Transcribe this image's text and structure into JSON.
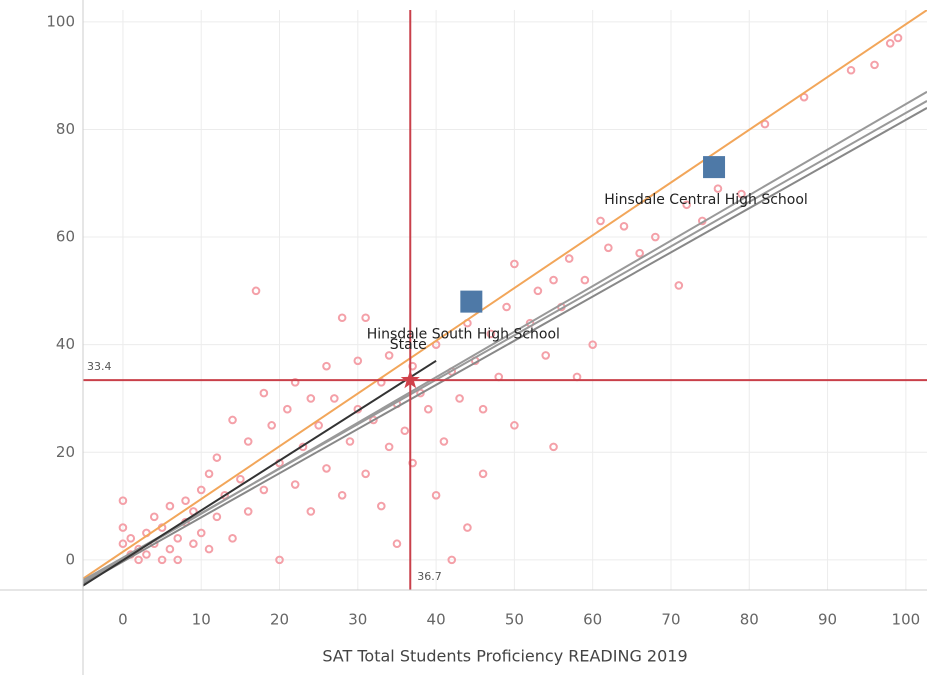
{
  "chart_data": {
    "type": "scatter",
    "x_label": "SAT Total Students Proficiency READING 2019",
    "xlim": [
      -5.1,
      102.7
    ],
    "ylim": [
      -5.6,
      102.2
    ],
    "xticks": [
      0,
      10,
      20,
      30,
      40,
      50,
      60,
      70,
      80,
      90,
      100
    ],
    "yticks": [
      0,
      20,
      40,
      60,
      80,
      100
    ],
    "grid": true,
    "series": [
      {
        "color": "#f4a0a8",
        "x": [
          0,
          0,
          0,
          1,
          1,
          2,
          2,
          3,
          3,
          4,
          4,
          5,
          5,
          6,
          6,
          7,
          7,
          8,
          8,
          9,
          9,
          10,
          10,
          11,
          11,
          12,
          12,
          13,
          14,
          14,
          15,
          16,
          16,
          17,
          18,
          18,
          19,
          20,
          20,
          21,
          22,
          22,
          23,
          24,
          24,
          25,
          26,
          26,
          27,
          28,
          28,
          29,
          30,
          30,
          31,
          31,
          32,
          33,
          33,
          34,
          34,
          35,
          35,
          36,
          37,
          37,
          38,
          39,
          40,
          40,
          41,
          42,
          42,
          43,
          44,
          44,
          45,
          46,
          46,
          47,
          48,
          49,
          50,
          50,
          52,
          53,
          54,
          55,
          55,
          56,
          57,
          58,
          59,
          60,
          61,
          62,
          64,
          66,
          68,
          71,
          72,
          74,
          76,
          79,
          82,
          87,
          93,
          96,
          98,
          99
        ],
        "values": [
          11,
          6,
          3,
          1,
          4,
          2,
          0,
          5,
          1,
          3,
          8,
          0,
          6,
          2,
          10,
          4,
          0,
          7,
          11,
          3,
          9,
          5,
          13,
          2,
          16,
          8,
          19,
          12,
          4,
          26,
          15,
          9,
          22,
          50,
          13,
          31,
          25,
          18,
          0,
          28,
          14,
          33,
          21,
          9,
          30,
          25,
          17,
          36,
          30,
          12,
          45,
          22,
          28,
          37,
          16,
          45,
          26,
          33,
          10,
          21,
          38,
          29,
          3,
          24,
          36,
          18,
          31,
          28,
          12,
          40,
          22,
          35,
          0,
          30,
          6,
          44,
          37,
          16,
          28,
          42,
          34,
          47,
          25,
          55,
          44,
          50,
          38,
          21,
          52,
          47,
          56,
          34,
          52,
          40,
          63,
          58,
          62,
          57,
          60,
          51,
          66,
          63,
          69,
          68,
          81,
          86,
          91,
          92,
          96,
          97
        ]
      }
    ],
    "trend_lines": [
      {
        "color": "#f2a65a",
        "x": [
          -5.1,
          102.7
        ],
        "values": [
          -3.5,
          102.2
        ]
      },
      {
        "color": "#999999",
        "x": [
          -5.1,
          102.7
        ],
        "values": [
          -4.2,
          87
        ]
      },
      {
        "color": "#999999",
        "x": [
          -5.1,
          102.7
        ],
        "values": [
          -3.8,
          85.3
        ]
      },
      {
        "color": "#888888",
        "x": [
          -5.1,
          102.7
        ],
        "values": [
          -4.5,
          84
        ]
      },
      {
        "color": "#333333",
        "x": [
          -5.1,
          40
        ],
        "values": [
          -4.8,
          37
        ]
      }
    ],
    "highlights": [
      {
        "label": "Hinsdale South High School",
        "x": 44.5,
        "y": 48,
        "color": "#4e79a7"
      },
      {
        "label": "Hinsdale Central High School",
        "x": 75.5,
        "y": 73,
        "color": "#4e79a7"
      }
    ],
    "state": {
      "label": "State",
      "x": 36.7,
      "y": 33.4,
      "color": "#d0414a"
    },
    "reference_lines": {
      "color": "#c9404a",
      "x": 36.7,
      "y": 33.4
    }
  }
}
